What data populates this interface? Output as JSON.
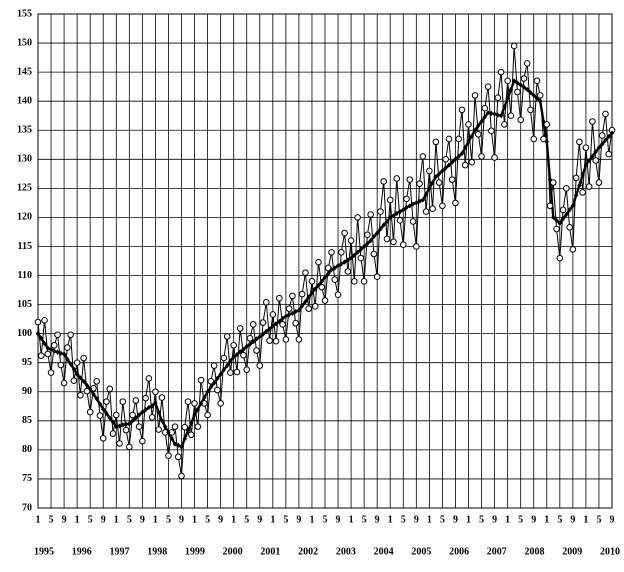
{
  "chart_data": {
    "type": "line",
    "x": [
      "1995-01",
      "1995-02",
      "1995-03",
      "1995-04",
      "1995-05",
      "1995-06",
      "1995-07",
      "1995-08",
      "1995-09",
      "1995-10",
      "1995-11",
      "1995-12",
      "1996-01",
      "1996-02",
      "1996-03",
      "1996-04",
      "1996-05",
      "1996-06",
      "1996-07",
      "1996-08",
      "1996-09",
      "1996-10",
      "1996-11",
      "1996-12",
      "1997-01",
      "1997-02",
      "1997-03",
      "1997-04",
      "1997-05",
      "1997-06",
      "1997-07",
      "1997-08",
      "1997-09",
      "1997-10",
      "1997-11",
      "1997-12",
      "1998-01",
      "1998-02",
      "1998-03",
      "1998-04",
      "1998-05",
      "1998-06",
      "1998-07",
      "1998-08",
      "1998-09",
      "1998-10",
      "1998-11",
      "1998-12",
      "1999-01",
      "1999-02",
      "1999-03",
      "1999-04",
      "1999-05",
      "1999-06",
      "1999-07",
      "1999-08",
      "1999-09",
      "1999-10",
      "1999-11",
      "1999-12",
      "2000-01",
      "2000-02",
      "2000-03",
      "2000-04",
      "2000-05",
      "2000-06",
      "2000-07",
      "2000-08",
      "2000-09",
      "2000-10",
      "2000-11",
      "2000-12",
      "2001-01",
      "2001-02",
      "2001-03",
      "2001-04",
      "2001-05",
      "2001-06",
      "2001-07",
      "2001-08",
      "2001-09",
      "2001-10",
      "2001-11",
      "2001-12",
      "2002-01",
      "2002-02",
      "2002-03",
      "2002-04",
      "2002-05",
      "2002-06",
      "2002-07",
      "2002-08",
      "2002-09",
      "2002-10",
      "2002-11",
      "2002-12",
      "2003-01",
      "2003-02",
      "2003-03",
      "2003-04",
      "2003-05",
      "2003-06",
      "2003-07",
      "2003-08",
      "2003-09",
      "2003-10",
      "2003-11",
      "2003-12",
      "2004-01",
      "2004-02",
      "2004-03",
      "2004-04",
      "2004-05",
      "2004-06",
      "2004-07",
      "2004-08",
      "2004-09",
      "2004-10",
      "2004-11",
      "2004-12",
      "2005-01",
      "2005-02",
      "2005-03",
      "2005-04",
      "2005-05",
      "2005-06",
      "2005-07",
      "2005-08",
      "2005-09",
      "2005-10",
      "2005-11",
      "2005-12",
      "2006-01",
      "2006-02",
      "2006-03",
      "2006-04",
      "2006-05",
      "2006-06",
      "2006-07",
      "2006-08",
      "2006-09",
      "2006-10",
      "2006-11",
      "2006-12",
      "2007-01",
      "2007-02",
      "2007-03",
      "2007-04",
      "2007-05",
      "2007-06",
      "2007-07",
      "2007-08",
      "2007-09",
      "2007-10",
      "2007-11",
      "2007-12",
      "2008-01",
      "2008-02",
      "2008-03",
      "2008-04",
      "2008-05",
      "2008-06",
      "2008-07",
      "2008-08",
      "2008-09",
      "2008-10",
      "2008-11",
      "2008-12",
      "2009-01",
      "2009-02",
      "2009-03",
      "2009-04",
      "2009-05",
      "2009-06",
      "2009-07",
      "2009-08",
      "2009-09"
    ],
    "series": [
      {
        "color": "#000000",
        "marker": "circle",
        "width": 1,
        "values": [
          102,
          96.2,
          102.3,
          96.5,
          93.3,
          98.0,
          99.8,
          94.6,
          91.5,
          97.6,
          99.8,
          91.9,
          95.0,
          89.4,
          95.8,
          90.1,
          86.5,
          90.6,
          91.8,
          85.9,
          82.0,
          88.3,
          90.5,
          82.8,
          86.0,
          81.1,
          88.3,
          83.4,
          80.5,
          86.0,
          88.5,
          84.0,
          81.5,
          88.9,
          92.3,
          85.6,
          90.0,
          83.5,
          89.0,
          83.0,
          79.0,
          83.0,
          84.0,
          78.8,
          75.5,
          83.9,
          88.3,
          82.6,
          88.0,
          84.0,
          92.0,
          88.0,
          86.0,
          91.8,
          94.5,
          90.3,
          88.0,
          95.8,
          99.5,
          93.3,
          98.0,
          93.4,
          100.9,
          96.3,
          93.8,
          99.2,
          101.6,
          97.1,
          94.5,
          101.9,
          105.4,
          98.8,
          103.3,
          98.7,
          106.1,
          101.6,
          99.0,
          104.3,
          106.5,
          101.8,
          99.0,
          106.8,
          110.5,
          104.3,
          109.0,
          104.7,
          112.3,
          108.0,
          105.7,
          111.3,
          114.0,
          109.3,
          106.7,
          114.0,
          117.3,
          110.7,
          116.0,
          109.0,
          120.0,
          113.0,
          109.0,
          117.0,
          120.5,
          113.7,
          109.8,
          121.0,
          126.2,
          116.3,
          123.0,
          115.8,
          126.7,
          119.5,
          115.3,
          123.2,
          126.5,
          119.3,
          115.0,
          125.8,
          130.5,
          121.0,
          128.0,
          121.5,
          133.0,
          126.0,
          122.0,
          130.0,
          133.5,
          126.5,
          122.5,
          133.5,
          138.5,
          129.0,
          136.0,
          129.5,
          141.0,
          134.3,
          130.5,
          138.8,
          142.5,
          134.9,
          130.3,
          140.6,
          145.0,
          136.0,
          143.5,
          137.5,
          149.5,
          141.6,
          136.8,
          143.9,
          146.5,
          138.5,
          133.5,
          143.5,
          141.0,
          133.5,
          136.0,
          122.0,
          126.0,
          118.0,
          113.0,
          121.3,
          125.0,
          118.3,
          114.5,
          126.8,
          133.0,
          124.3,
          132.0,
          125.3,
          136.5,
          129.8,
          126.0,
          134.1,
          137.8,
          130.9,
          135.0
        ]
      },
      {
        "color": "#000000",
        "marker": "diamond",
        "width": 2.4,
        "values": [
          100,
          99.2,
          98.3,
          97.5,
          97.3,
          97.0,
          96.8,
          96.6,
          96.5,
          95.6,
          94.8,
          93.9,
          93.0,
          92.4,
          91.8,
          91.1,
          90.5,
          89.6,
          88.8,
          87.9,
          87.0,
          86.3,
          85.5,
          84.8,
          84.0,
          84.1,
          84.3,
          84.4,
          84.5,
          85.0,
          85.5,
          86.0,
          86.5,
          86.9,
          87.3,
          87.6,
          88.0,
          86.5,
          85.0,
          84.0,
          83.0,
          82.0,
          81.0,
          80.8,
          80.5,
          81.9,
          83.3,
          84.6,
          86.0,
          87.0,
          88.0,
          89.0,
          90.0,
          90.8,
          91.5,
          92.3,
          93.0,
          93.8,
          94.5,
          95.3,
          96.0,
          96.4,
          96.9,
          97.3,
          97.8,
          98.2,
          98.6,
          99.1,
          99.5,
          99.9,
          100.4,
          100.8,
          101.3,
          101.7,
          102.1,
          102.6,
          103.0,
          103.3,
          103.5,
          103.8,
          104.0,
          104.8,
          105.5,
          106.3,
          107.0,
          107.7,
          108.3,
          109.0,
          109.7,
          110.3,
          111.0,
          111.3,
          111.7,
          112.0,
          112.3,
          112.7,
          113.0,
          113.5,
          114.0,
          114.5,
          115.0,
          115.5,
          116.0,
          116.7,
          117.3,
          118.0,
          118.7,
          119.3,
          120.0,
          120.3,
          120.7,
          121.0,
          121.3,
          121.7,
          122.0,
          122.3,
          122.5,
          122.8,
          123.0,
          124.0,
          125.0,
          126.0,
          127.0,
          127.5,
          128.0,
          128.5,
          129.0,
          129.5,
          130.0,
          130.5,
          131.0,
          132.0,
          133.0,
          134.0,
          135.0,
          135.8,
          136.5,
          137.3,
          138.0,
          137.9,
          137.8,
          137.6,
          137.5,
          139.0,
          140.5,
          142.0,
          143.5,
          143.1,
          142.8,
          142.4,
          142.0,
          141.5,
          141.0,
          140.5,
          140.0,
          136.5,
          133.0,
          126.5,
          120.0,
          119.5,
          119.0,
          119.8,
          120.5,
          121.3,
          122.0,
          123.8,
          125.5,
          127.3,
          129.0,
          129.8,
          130.5,
          131.3,
          132.0,
          132.6,
          133.3,
          133.9,
          134.5
        ]
      }
    ],
    "xlim": [
      "1995-01",
      "2009-09"
    ],
    "xticks": [
      {
        "value": "1995-01",
        "label": "1"
      },
      {
        "value": "1995-05",
        "label": "5"
      },
      {
        "value": "1995-09",
        "label": "9"
      },
      {
        "value": "1996-01",
        "label": "1"
      },
      {
        "value": "1996-05",
        "label": "5"
      },
      {
        "value": "1996-09",
        "label": "9"
      },
      {
        "value": "1997-01",
        "label": "1"
      },
      {
        "value": "1997-05",
        "label": "5"
      },
      {
        "value": "1997-09",
        "label": "9"
      },
      {
        "value": "1998-01",
        "label": "1"
      },
      {
        "value": "1998-05",
        "label": "5"
      },
      {
        "value": "1998-09",
        "label": "9"
      },
      {
        "value": "1999-01",
        "label": "1"
      },
      {
        "value": "1999-05",
        "label": "5"
      },
      {
        "value": "1999-09",
        "label": "9"
      },
      {
        "value": "2000-01",
        "label": "1"
      },
      {
        "value": "2000-05",
        "label": "5"
      },
      {
        "value": "2000-09",
        "label": "9"
      },
      {
        "value": "2001-01",
        "label": "1"
      },
      {
        "value": "2001-05",
        "label": "5"
      },
      {
        "value": "2001-09",
        "label": "9"
      },
      {
        "value": "2002-01",
        "label": "1"
      },
      {
        "value": "2002-05",
        "label": "5"
      },
      {
        "value": "2002-09",
        "label": "9"
      },
      {
        "value": "2003-01",
        "label": "1"
      },
      {
        "value": "2003-05",
        "label": "5"
      },
      {
        "value": "2003-09",
        "label": "9"
      },
      {
        "value": "2004-01",
        "label": "1"
      },
      {
        "value": "2004-05",
        "label": "5"
      },
      {
        "value": "2004-09",
        "label": "9"
      },
      {
        "value": "2005-01",
        "label": "1"
      },
      {
        "value": "2005-05",
        "label": "5"
      },
      {
        "value": "2005-09",
        "label": "9"
      },
      {
        "value": "2006-01",
        "label": "1"
      },
      {
        "value": "2006-05",
        "label": "5"
      },
      {
        "value": "2006-09",
        "label": "9"
      },
      {
        "value": "2007-01",
        "label": "1"
      },
      {
        "value": "2007-05",
        "label": "5"
      },
      {
        "value": "2007-09",
        "label": "9"
      },
      {
        "value": "2008-01",
        "label": "1"
      },
      {
        "value": "2008-05",
        "label": "5"
      },
      {
        "value": "2008-09",
        "label": "9"
      },
      {
        "value": "2009-01",
        "label": "1"
      },
      {
        "value": "2009-05",
        "label": "5"
      },
      {
        "value": "2009-09",
        "label": "9"
      }
    ],
    "year_labels": [
      "1995",
      "1996",
      "1997",
      "1998",
      "1999",
      "2000",
      "2001",
      "2002",
      "2003",
      "2004",
      "2005",
      "2006",
      "2007",
      "2008",
      "2009",
      "2010"
    ],
    "ylim": [
      70,
      155
    ],
    "yticks": [
      70,
      75,
      80,
      85,
      90,
      95,
      100,
      105,
      110,
      115,
      120,
      125,
      130,
      135,
      140,
      145,
      150,
      155
    ],
    "grid": true
  }
}
